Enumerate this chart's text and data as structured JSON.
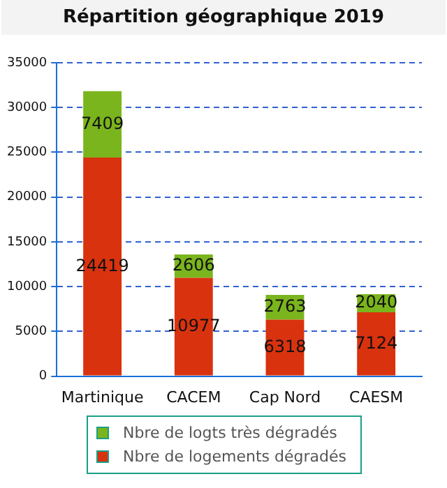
{
  "chart_data": {
    "type": "bar",
    "title": "Répartition géographique 2019",
    "stacked": true,
    "categories": [
      "Martinique",
      "CACEM",
      "Cap Nord",
      "CAESM"
    ],
    "series": [
      {
        "name": "Nbre de logements dégradés",
        "color": "#d9320e",
        "values": [
          24419,
          10977,
          6318,
          7124
        ]
      },
      {
        "name": "Nbre de logts très dégradés",
        "color": "#7ab51d",
        "values": [
          7409,
          2606,
          2763,
          2040
        ]
      }
    ],
    "ylim": [
      0,
      35000
    ],
    "yticks": [
      0,
      5000,
      10000,
      15000,
      20000,
      25000,
      30000,
      35000
    ],
    "grid": "y",
    "legend": "bottom",
    "data_labels": true
  }
}
